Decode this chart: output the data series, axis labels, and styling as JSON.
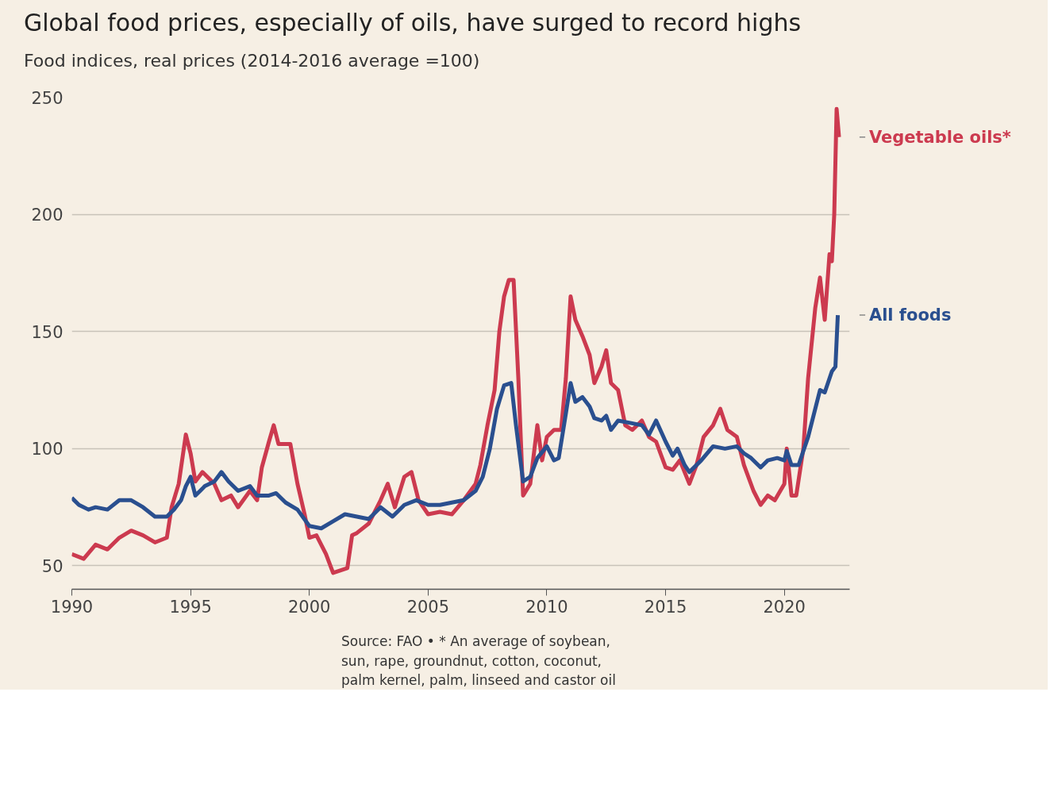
{
  "chart_data": {
    "type": "line",
    "title": "Global food prices, especially of oils, have surged to record highs",
    "subtitle": "Food indices, real prices (2014-2016 average =100)",
    "annotations": [
      "Source: FAO • * An average of soybean, sun, rape, groundnut, cotton, coconut, palm kernel, palm, linseed and castor oil"
    ],
    "xlim": [
      1990,
      2022.75
    ],
    "xticks": [
      1990,
      1995,
      2000,
      2005,
      2010,
      2015,
      2020
    ],
    "ylim": [
      40,
      250
    ],
    "yticks": [
      50,
      100,
      150,
      200,
      250
    ],
    "grid": "y",
    "legend": false,
    "marker": "none",
    "line_style": "solid",
    "series": [
      {
        "name": "Vegetable oils*",
        "color": "#cc3a4f",
        "x": [
          1990.0,
          1990.5,
          1991,
          1991.5,
          1992,
          1992.5,
          1993,
          1993.5,
          1994,
          1994.2,
          1994.5,
          1994.8,
          1995,
          1995.2,
          1995.5,
          1996,
          1996.3,
          1996.7,
          1997,
          1997.5,
          1997.8,
          1998,
          1998.3,
          1998.5,
          1998.7,
          1999.2,
          1999.5,
          1999.8,
          2000,
          2000.3,
          2000.7,
          2001,
          2001.3,
          2001.6,
          2001.8,
          2002,
          2002.5,
          2003,
          2003.3,
          2003.6,
          2004,
          2004.3,
          2004.6,
          2005,
          2005.5,
          2006,
          2006.5,
          2007,
          2007.2,
          2007.5,
          2007.8,
          2008,
          2008.2,
          2008.4,
          2008.6,
          2008.8,
          2009,
          2009.3,
          2009.6,
          2009.8,
          2010,
          2010.3,
          2010.6,
          2010.8,
          2011,
          2011.2,
          2011.5,
          2011.8,
          2012,
          2012.3,
          2012.5,
          2012.7,
          2013,
          2013.3,
          2013.6,
          2014,
          2014.3,
          2014.6,
          2015,
          2015.3,
          2015.6,
          2016,
          2016.3,
          2016.6,
          2017,
          2017.3,
          2017.6,
          2018,
          2018.3,
          2018.7,
          2019,
          2019.3,
          2019.6,
          2020,
          2020.1,
          2020.3,
          2020.5,
          2020.8,
          2021,
          2021.3,
          2021.5,
          2021.7,
          2021.9,
          2022,
          2022.1,
          2022.2,
          2022.3
        ],
        "values": [
          55,
          53,
          59,
          57,
          62,
          65,
          63,
          60,
          62,
          75,
          85,
          106,
          98,
          86,
          90,
          85,
          78,
          80,
          75,
          82,
          78,
          92,
          103,
          110,
          102,
          102,
          85,
          72,
          62,
          63,
          55,
          47,
          48,
          49,
          63,
          64,
          68,
          78,
          85,
          75,
          88,
          90,
          78,
          72,
          73,
          72,
          78,
          85,
          93,
          110,
          125,
          150,
          165,
          172,
          172,
          130,
          80,
          85,
          110,
          95,
          105,
          108,
          108,
          130,
          165,
          155,
          148,
          140,
          128,
          135,
          142,
          128,
          125,
          110,
          108,
          112,
          105,
          103,
          92,
          91,
          95,
          85,
          93,
          105,
          110,
          117,
          108,
          105,
          93,
          82,
          76,
          80,
          78,
          85,
          100,
          80,
          80,
          100,
          130,
          160,
          173,
          155,
          183,
          180,
          200,
          245,
          233
        ]
      },
      {
        "name": "All foods",
        "color": "#2a4f8f",
        "x": [
          1990,
          1990.3,
          1990.7,
          1991,
          1991.5,
          1992,
          1992.5,
          1993,
          1993.5,
          1994,
          1994.3,
          1994.6,
          1994.8,
          1995,
          1995.2,
          1995.6,
          1996,
          1996.3,
          1996.6,
          1997,
          1997.5,
          1997.8,
          1998.3,
          1998.6,
          1999,
          1999.5,
          2000,
          2000.5,
          2001,
          2001.5,
          2002,
          2002.5,
          2003,
          2003.5,
          2004,
          2004.5,
          2005,
          2005.5,
          2006,
          2006.5,
          2007,
          2007.3,
          2007.6,
          2007.9,
          2008.2,
          2008.5,
          2008.7,
          2009,
          2009.3,
          2009.6,
          2010,
          2010.3,
          2010.5,
          2010.8,
          2011,
          2011.2,
          2011.5,
          2011.8,
          2012,
          2012.3,
          2012.5,
          2012.7,
          2013,
          2013.5,
          2014,
          2014.3,
          2014.6,
          2015,
          2015.3,
          2015.5,
          2015.8,
          2016,
          2016.5,
          2017,
          2017.5,
          2018,
          2018.3,
          2018.6,
          2019,
          2019.3,
          2019.7,
          2020,
          2020.1,
          2020.3,
          2020.6,
          2021,
          2021.5,
          2021.7,
          2022,
          2022.15,
          2022.25
        ],
        "values": [
          79,
          76,
          74,
          75,
          74,
          78,
          78,
          75,
          71,
          71,
          74,
          78,
          84,
          88,
          80,
          84,
          86,
          90,
          86,
          82,
          84,
          80,
          80,
          81,
          77,
          74,
          67,
          66,
          69,
          72,
          71,
          70,
          75,
          71,
          76,
          78,
          76,
          76,
          77,
          78,
          82,
          88,
          100,
          117,
          127,
          128,
          110,
          86,
          88,
          96,
          101,
          95,
          96,
          115,
          128,
          120,
          122,
          118,
          113,
          112,
          114,
          108,
          112,
          111,
          110,
          106,
          112,
          103,
          97,
          100,
          93,
          90,
          95,
          101,
          100,
          101,
          98,
          96,
          92,
          95,
          96,
          95,
          99,
          93,
          93,
          105,
          125,
          124,
          133,
          135,
          157
        ]
      }
    ]
  }
}
